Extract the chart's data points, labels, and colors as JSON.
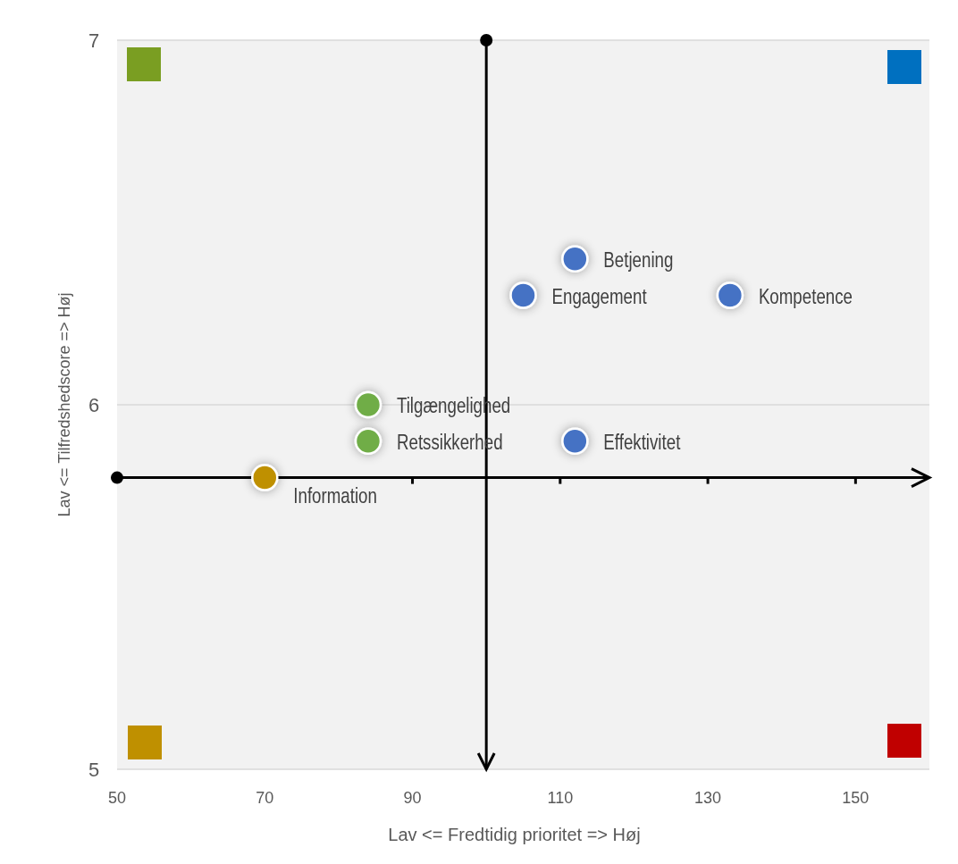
{
  "chart_data": {
    "type": "scatter",
    "xlabel": "Lav <= Fredtidig prioritet => Høj",
    "ylabel": "Lav <= Tilfredshedscore => Høj",
    "series": [
      {
        "color": "#4472c4",
        "x": [
          112,
          105,
          133,
          112
        ],
        "values": [
          6.4,
          6.3,
          6.3,
          5.9
        ]
      },
      {
        "color": "#70ad47",
        "x": [
          84,
          84
        ],
        "values": [
          6.0,
          5.9
        ]
      },
      {
        "color": "#bf9000",
        "x": [
          70
        ],
        "values": [
          5.8
        ]
      }
    ],
    "annotations": [
      {
        "text": "Betjening",
        "x": 112,
        "y": 6.4
      },
      {
        "text": "Engagement",
        "x": 105,
        "y": 6.3
      },
      {
        "text": "Kompetence",
        "x": 133,
        "y": 6.3
      },
      {
        "text": "Effektivitet",
        "x": 112,
        "y": 5.9
      },
      {
        "text": "Tilgængelighed",
        "x": 84,
        "y": 6.0
      },
      {
        "text": "Retssikkerhed",
        "x": 84,
        "y": 5.9
      },
      {
        "text": "Information",
        "x": 70,
        "y": 5.8
      }
    ],
    "xlim": [
      50,
      160
    ],
    "xticks": [
      50,
      70,
      90,
      110,
      130,
      150
    ],
    "ylim": [
      5,
      7
    ],
    "yticks": [
      5,
      6,
      7
    ],
    "grid": "y",
    "marker": "circle",
    "ref_lines": [
      {
        "axis": "x",
        "value": 100,
        "color": "#000000"
      },
      {
        "axis": "y",
        "value": 5.8,
        "color": "#000000"
      }
    ]
  }
}
